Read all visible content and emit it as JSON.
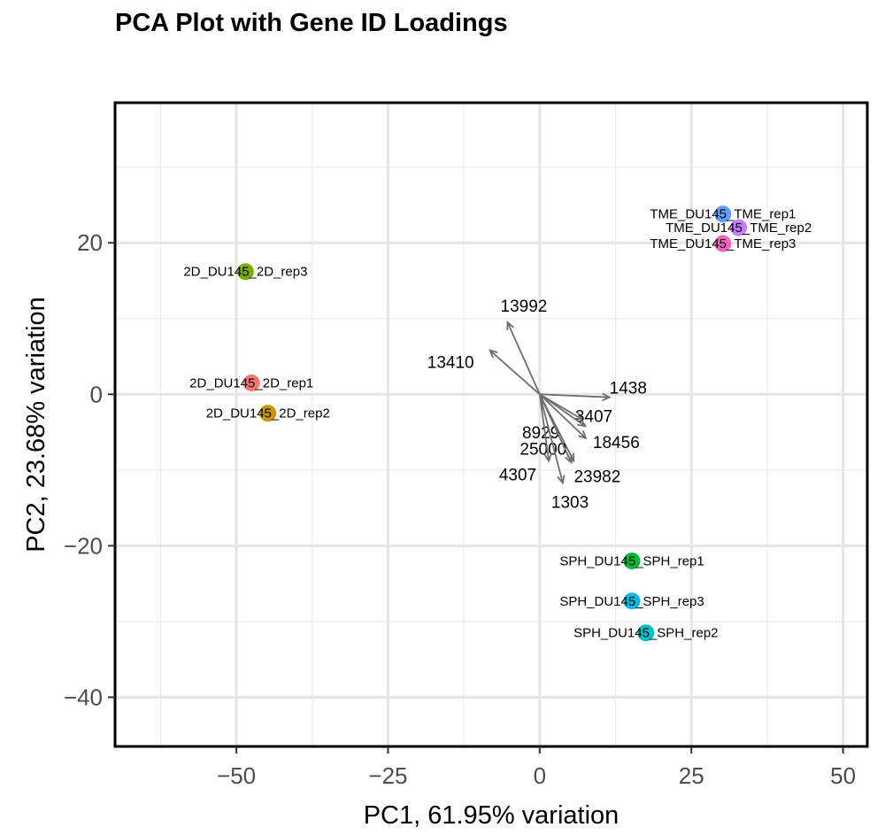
{
  "chart_data": {
    "type": "scatter",
    "title": "PCA Plot with Gene ID Loadings",
    "xlabel": "PC1, 61.95% variation",
    "ylabel": "PC2, 23.68% variation",
    "xlim": [
      -70,
      54
    ],
    "ylim": [
      -46.5,
      38.5
    ],
    "xticks": [
      -50,
      -25,
      0,
      25,
      50
    ],
    "xtick_labels": [
      "−50",
      "−25",
      "0",
      "25",
      "50"
    ],
    "yticks": [
      -40,
      -20,
      0,
      20
    ],
    "ytick_labels": [
      "−40",
      "−20",
      "0",
      "20"
    ],
    "grid": true,
    "legend": "none",
    "samples": [
      {
        "label": "2D_DU145_2D_rep3",
        "x": -48.5,
        "y": 16.2,
        "color": "#7cae00"
      },
      {
        "label": "2D_DU145_2D_rep1",
        "x": -47.5,
        "y": 1.5,
        "color": "#f8766d"
      },
      {
        "label": "2D_DU145_2D_rep2",
        "x": -44.8,
        "y": -2.5,
        "color": "#cd9600"
      },
      {
        "label": "TME_DU145_TME_rep1",
        "x": 30.2,
        "y": 23.8,
        "color": "#619cff"
      },
      {
        "label": "TME_DU145_TME_rep2",
        "x": 32.8,
        "y": 22.0,
        "color": "#c77cff"
      },
      {
        "label": "TME_DU145_TME_rep3",
        "x": 30.2,
        "y": 19.9,
        "color": "#ff61c3"
      },
      {
        "label": "SPH_DU145_SPH_rep1",
        "x": 15.2,
        "y": -22.0,
        "color": "#00ba38"
      },
      {
        "label": "SPH_DU145_SPH_rep3",
        "x": 15.2,
        "y": -27.3,
        "color": "#00b9e3"
      },
      {
        "label": "SPH_DU145_SPH_rep2",
        "x": 17.5,
        "y": -31.5,
        "color": "#00bfc4"
      }
    ],
    "loadings": [
      {
        "gene": "13992",
        "x": -5.3,
        "y": 9.5
      },
      {
        "gene": "13410",
        "x": -8.2,
        "y": 5.8
      },
      {
        "gene": "1438",
        "x": 11.5,
        "y": -0.4
      },
      {
        "gene": "3407",
        "x": 7.0,
        "y": -3.3
      },
      {
        "gene": "8929",
        "x": 7.5,
        "y": -4.2
      },
      {
        "gene": "18456",
        "x": 7.6,
        "y": -5.8
      },
      {
        "gene": "25000",
        "x": 5.6,
        "y": -8.8
      },
      {
        "gene": "23982",
        "x": 5.2,
        "y": -9.0
      },
      {
        "gene": "4307",
        "x": 1.5,
        "y": -8.8
      },
      {
        "gene": "1303",
        "x": 3.8,
        "y": -11.7
      }
    ]
  }
}
